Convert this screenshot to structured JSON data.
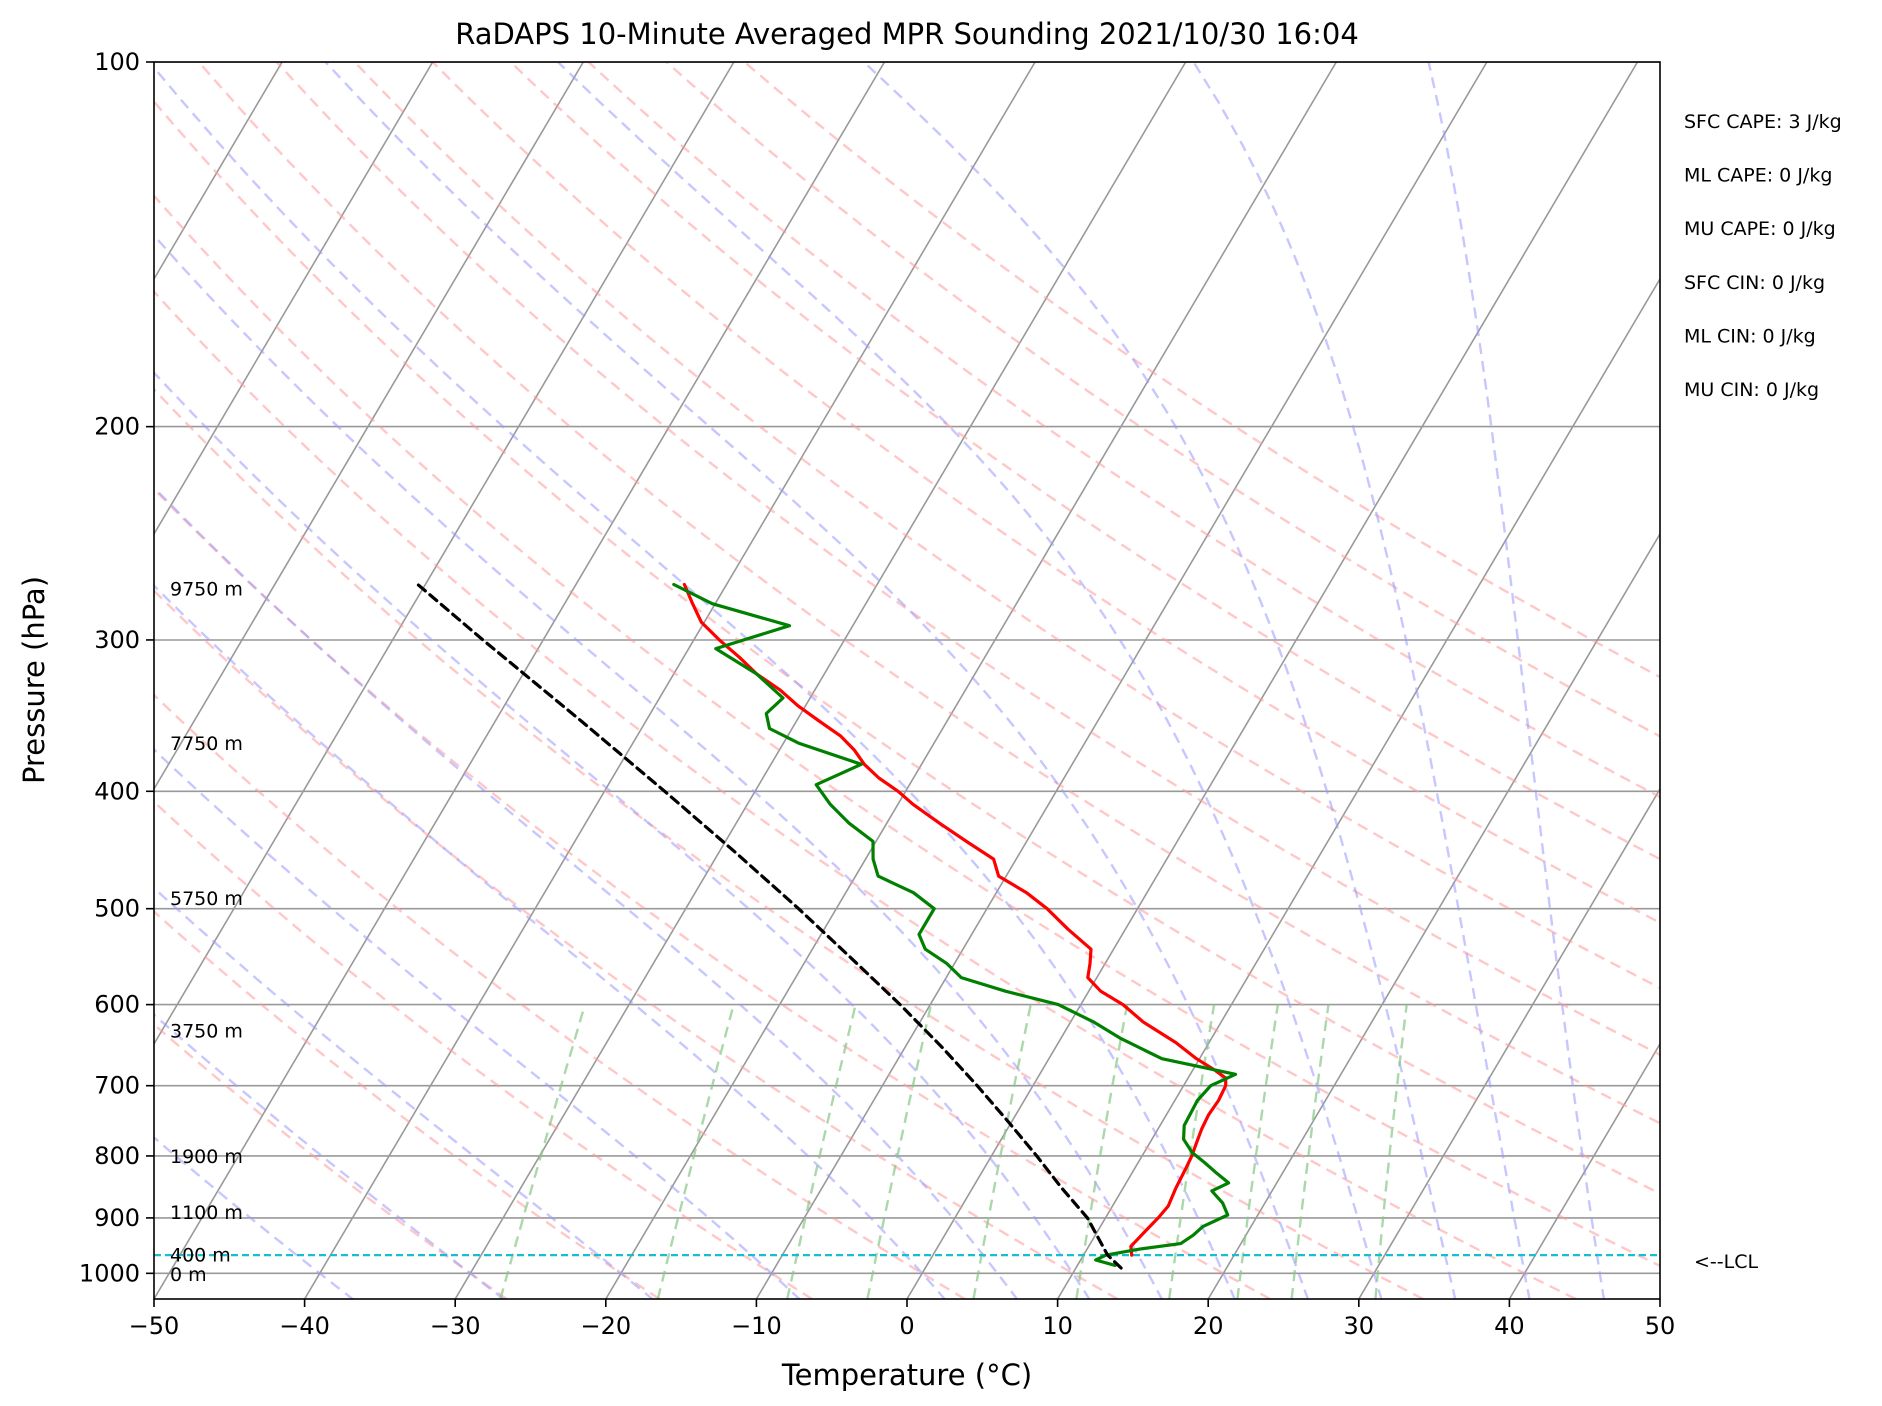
{
  "chart_data": {
    "type": "line",
    "subtype": "skew-t log-p sounding",
    "title": "RaDAPS 10-Minute Averaged MPR Sounding 2021/10/30 16:04",
    "xlabel": "Temperature (°C)",
    "ylabel": "Pressure (hPa)",
    "xlim": [
      -50,
      50
    ],
    "ylim": [
      1050,
      100
    ],
    "y_scale": "log",
    "skew_per_decade_degC": 47.5,
    "x_ticks": [
      -50,
      -40,
      -30,
      -20,
      -10,
      0,
      10,
      20,
      30,
      40,
      50
    ],
    "x_tick_labels": [
      "−50",
      "−40",
      "−30",
      "−20",
      "−10",
      "0",
      "10",
      "20",
      "30",
      "40",
      "50"
    ],
    "y_ticks": [
      100,
      200,
      300,
      400,
      500,
      600,
      700,
      800,
      900,
      1000
    ],
    "y_tick_labels": [
      "100",
      "200",
      "300",
      "400",
      "500",
      "600",
      "700",
      "800",
      "900",
      "1000"
    ],
    "grid": true,
    "colors": {
      "temperature": "#ff0000",
      "dewpoint": "#008000",
      "parcel": "#000000",
      "lcl": "#17becf",
      "dry_adiabats": "#ff9999",
      "moist_adiabats": "#9999ff",
      "mixing_ratio": "#88c888",
      "isotherms": "#999999",
      "isobars": "#999999"
    },
    "series": [
      {
        "key": "temperature",
        "points": [
          [
            966,
            13.2
          ],
          [
            950,
            12.8
          ],
          [
            920,
            13.2
          ],
          [
            900,
            13.5
          ],
          [
            880,
            13.7
          ],
          [
            850,
            13.5
          ],
          [
            820,
            13.4
          ],
          [
            800,
            13.3
          ],
          [
            780,
            13.1
          ],
          [
            760,
            12.9
          ],
          [
            740,
            12.8
          ],
          [
            720,
            12.9
          ],
          [
            700,
            12.8
          ],
          [
            690,
            12.5
          ],
          [
            680,
            11.5
          ],
          [
            665,
            9.8
          ],
          [
            645,
            7.8
          ],
          [
            620,
            4.8
          ],
          [
            600,
            2.8
          ],
          [
            585,
            0.8
          ],
          [
            570,
            -0.6
          ],
          [
            555,
            -1.0
          ],
          [
            540,
            -1.5
          ],
          [
            520,
            -3.8
          ],
          [
            500,
            -6.0
          ],
          [
            485,
            -8.0
          ],
          [
            470,
            -10.5
          ],
          [
            455,
            -11.5
          ],
          [
            440,
            -14.0
          ],
          [
            425,
            -16.5
          ],
          [
            410,
            -19.0
          ],
          [
            400,
            -20.5
          ],
          [
            390,
            -22.3
          ],
          [
            380,
            -23.8
          ],
          [
            370,
            -25.0
          ],
          [
            360,
            -26.5
          ],
          [
            350,
            -28.5
          ],
          [
            340,
            -30.5
          ],
          [
            330,
            -32.3
          ],
          [
            320,
            -34.5
          ],
          [
            310,
            -36.3
          ],
          [
            300,
            -38.3
          ],
          [
            290,
            -40.2
          ],
          [
            280,
            -41.5
          ],
          [
            270,
            -42.8
          ]
        ]
      },
      {
        "key": "dewpoint",
        "points": [
          [
            985,
            12.5
          ],
          [
            975,
            11.0
          ],
          [
            966,
            11.5
          ],
          [
            955,
            13.5
          ],
          [
            945,
            16.0
          ],
          [
            930,
            16.5
          ],
          [
            915,
            16.8
          ],
          [
            895,
            18.0
          ],
          [
            875,
            17.2
          ],
          [
            855,
            16.0
          ],
          [
            842,
            16.8
          ],
          [
            825,
            15.5
          ],
          [
            810,
            14.4
          ],
          [
            795,
            13.2
          ],
          [
            775,
            12.1
          ],
          [
            755,
            11.6
          ],
          [
            720,
            11.5
          ],
          [
            700,
            11.8
          ],
          [
            685,
            13.0
          ],
          [
            665,
            7.5
          ],
          [
            640,
            4.0
          ],
          [
            620,
            1.5
          ],
          [
            600,
            -1.5
          ],
          [
            585,
            -5.5
          ],
          [
            570,
            -9.0
          ],
          [
            555,
            -10.5
          ],
          [
            540,
            -12.5
          ],
          [
            525,
            -13.5
          ],
          [
            500,
            -13.5
          ],
          [
            485,
            -15.5
          ],
          [
            470,
            -18.5
          ],
          [
            455,
            -19.5
          ],
          [
            440,
            -20.2
          ],
          [
            425,
            -22.5
          ],
          [
            410,
            -24.5
          ],
          [
            395,
            -26.2
          ],
          [
            380,
            -24.0
          ],
          [
            365,
            -29.0
          ],
          [
            355,
            -31.5
          ],
          [
            345,
            -32.3
          ],
          [
            335,
            -31.8
          ],
          [
            320,
            -34.5
          ],
          [
            305,
            -38.2
          ],
          [
            292,
            -34.2
          ],
          [
            280,
            -40.2
          ],
          [
            270,
            -43.5
          ]
        ]
      },
      {
        "key": "parcel",
        "points": [
          [
            990,
            13.0
          ],
          [
            966,
            11.6
          ],
          [
            900,
            8.8
          ],
          [
            850,
            5.9
          ],
          [
            800,
            3.0
          ],
          [
            750,
            -0.2
          ],
          [
            700,
            -3.7
          ],
          [
            650,
            -7.6
          ],
          [
            600,
            -12.0
          ],
          [
            550,
            -17.0
          ],
          [
            500,
            -22.5
          ],
          [
            450,
            -28.8
          ],
          [
            400,
            -36.0
          ],
          [
            350,
            -44.3
          ],
          [
            300,
            -54.0
          ],
          [
            270,
            -60.5
          ]
        ]
      }
    ],
    "lcl_pressure": 966,
    "lcl_label": "<--LCL",
    "dry_adiabats_theta_C": [
      -30,
      -20,
      -10,
      0,
      10,
      20,
      30,
      40,
      50,
      60,
      70,
      80,
      90,
      100,
      110,
      120,
      130,
      140
    ],
    "moist_adiabats_thetaw_C": [
      -40,
      -30,
      -20,
      -10,
      0,
      5,
      10,
      15,
      20,
      25,
      30,
      35,
      40,
      45
    ],
    "mixing_ratio_gkg": [
      0.4,
      1,
      2,
      3,
      5,
      8,
      12,
      16,
      20,
      28
    ],
    "isotherms_C": [
      -170,
      -160,
      -150,
      -140,
      -130,
      -120,
      -110,
      -100,
      -90,
      -80,
      -70,
      -60,
      -50,
      -40,
      -30,
      -20,
      -10,
      0,
      10,
      20,
      30,
      40
    ],
    "height_labels": [
      {
        "text": "9750 m",
        "pressure": 272
      },
      {
        "text": "7750 m",
        "pressure": 365
      },
      {
        "text": "5750 m",
        "pressure": 490
      },
      {
        "text": "3750 m",
        "pressure": 630
      },
      {
        "text": "1900 m",
        "pressure": 800
      },
      {
        "text": "1100 m",
        "pressure": 890
      },
      {
        "text": "400 m",
        "pressure": 965
      },
      {
        "text": "0 m",
        "pressure": 1001
      }
    ],
    "indices": [
      "SFC CAPE: 3 J/kg",
      "ML CAPE: 0 J/kg",
      "MU CAPE: 0 J/kg",
      "SFC CIN: 0 J/kg",
      "ML CIN: 0 J/kg",
      "MU CIN: 0 J/kg"
    ]
  }
}
